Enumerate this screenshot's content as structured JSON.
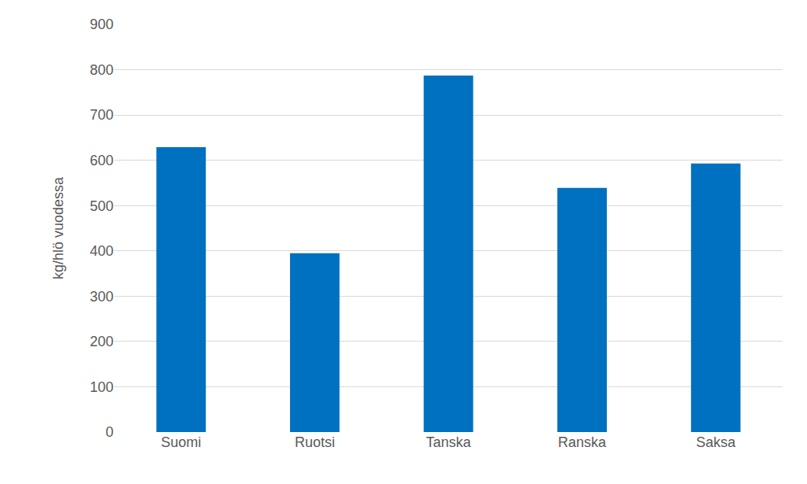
{
  "chart_data": {
    "type": "bar",
    "y_label": "kg/hlö vuodessa",
    "categories": [
      "Suomi",
      "Ruotsi",
      "Tanska",
      "Ranska",
      "Saksa"
    ],
    "values": [
      629,
      395,
      787,
      539,
      593
    ],
    "color": "#0070c0",
    "ylim": [
      0,
      900
    ],
    "yticks": [
      0,
      100,
      200,
      300,
      400,
      500,
      600,
      700,
      800,
      900
    ],
    "grid": true
  }
}
